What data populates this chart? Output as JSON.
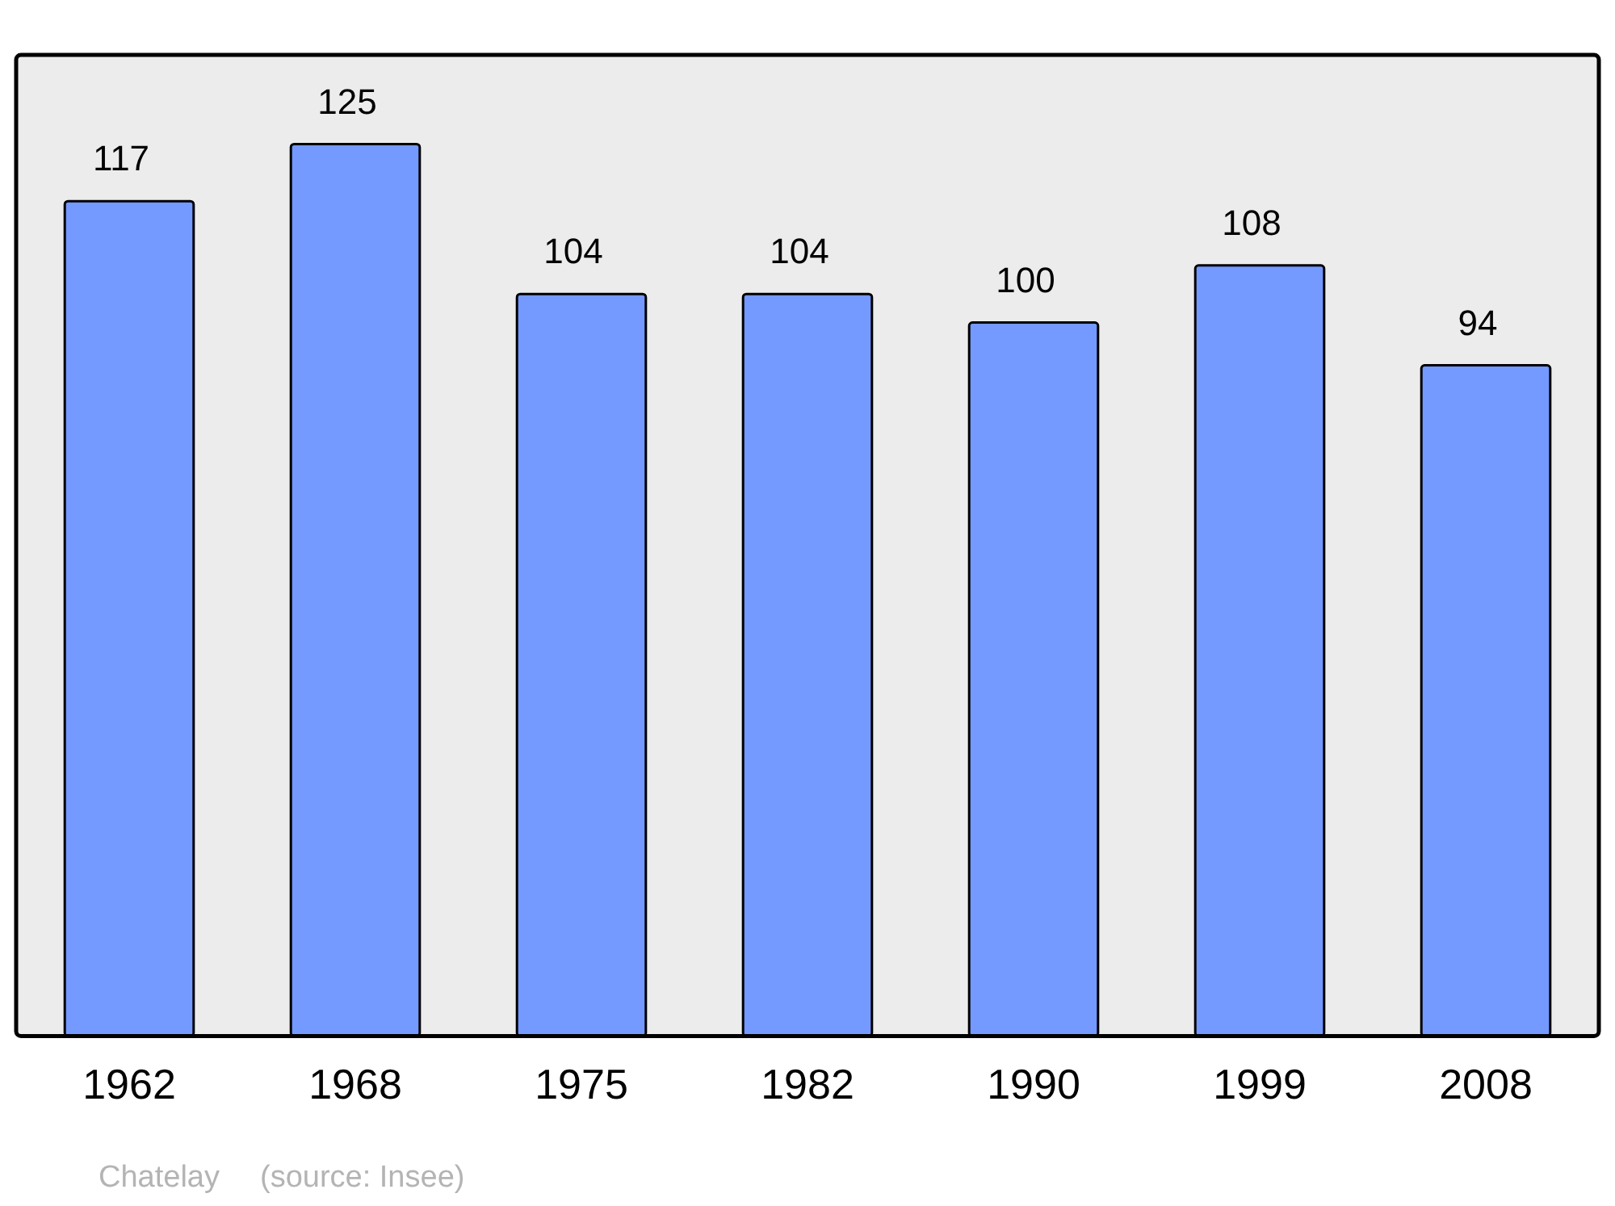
{
  "chart_data": {
    "type": "bar",
    "categories": [
      "1962",
      "1968",
      "1975",
      "1982",
      "1990",
      "1999",
      "2008"
    ],
    "values": [
      117,
      125,
      104,
      104,
      100,
      108,
      94
    ],
    "color": "#7499ff",
    "ylim": [
      0,
      137.5
    ],
    "data_labels": true,
    "legend": false,
    "annotations": [
      "Chatelay",
      "(source: Insee)"
    ]
  }
}
